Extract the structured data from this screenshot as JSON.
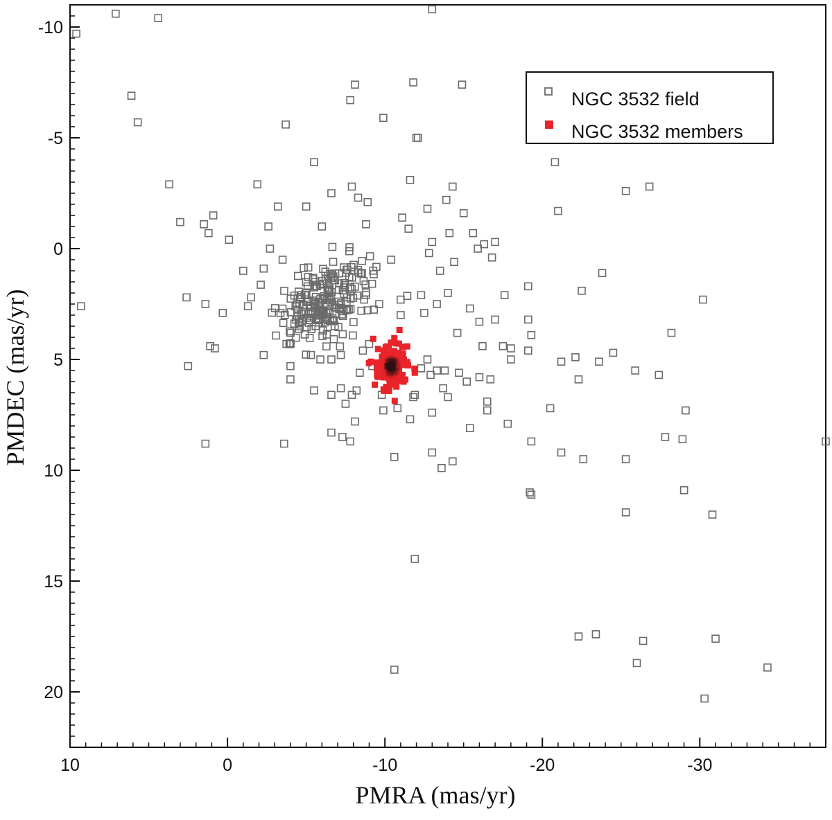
{
  "chart_data": {
    "type": "scatter",
    "xlabel": "PMRA (mas/yr)",
    "ylabel": "PMDEC (mas/yr)",
    "x_axis": {
      "reversed": true,
      "xlim": [
        10,
        -38
      ],
      "ticks": [
        10,
        0,
        -10,
        -20,
        -30
      ],
      "tick_labels": [
        "10",
        "0",
        "-10",
        "-20",
        "-30"
      ]
    },
    "y_axis": {
      "inverted": true,
      "ylim": [
        -11,
        22.5
      ],
      "ticks": [
        -10,
        -5,
        0,
        5,
        10,
        15,
        20
      ],
      "tick_labels": [
        "-10",
        "-5",
        "0",
        "5",
        "10",
        "15",
        "20"
      ]
    },
    "grid": false,
    "legend": {
      "placement": "top-right",
      "entries": [
        {
          "label": "NGC 3532 field",
          "marker": "open-square",
          "color": "#6b6b6b"
        },
        {
          "label": "NGC 3532 members",
          "marker": "filled-square",
          "color": "#e8242a"
        }
      ]
    },
    "series": [
      {
        "name": "NGC 3532 field",
        "marker": "open-square",
        "color": "#6b6b6b",
        "points": [
          [
            9.6,
            -9.7
          ],
          [
            9.3,
            2.6
          ],
          [
            7.1,
            -10.6
          ],
          [
            4.4,
            -10.4
          ],
          [
            -13.0,
            -10.8
          ],
          [
            6.1,
            -6.9
          ],
          [
            5.7,
            -5.7
          ],
          [
            3.7,
            -2.9
          ],
          [
            -1.9,
            -2.9
          ],
          [
            -7.8,
            -6.7
          ],
          [
            -8.1,
            -7.4
          ],
          [
            -11.8,
            -7.5
          ],
          [
            -14.9,
            -7.4
          ],
          [
            -3.7,
            -5.6
          ],
          [
            -9.9,
            -5.9
          ],
          [
            -12.0,
            -5.0
          ],
          [
            -12.1,
            -5.0
          ],
          [
            -5.5,
            -3.9
          ],
          [
            -20.8,
            -3.9
          ],
          [
            -25.3,
            -2.6
          ],
          [
            -26.8,
            -2.8
          ],
          [
            -21.0,
            -1.7
          ],
          [
            -7.9,
            -2.8
          ],
          [
            -6.6,
            -2.5
          ],
          [
            -11.6,
            -3.1
          ],
          [
            -14.3,
            -2.8
          ],
          [
            -13.9,
            -2.2
          ],
          [
            -3.2,
            -1.9
          ],
          [
            -5.0,
            -1.9
          ],
          [
            -8.3,
            -2.3
          ],
          [
            -8.9,
            -2.1
          ],
          [
            -11.1,
            -1.4
          ],
          [
            -12.7,
            -1.8
          ],
          [
            -15.0,
            -1.6
          ],
          [
            0.9,
            -1.5
          ],
          [
            1.5,
            -1.1
          ],
          [
            1.2,
            -0.7
          ],
          [
            3.0,
            -1.2
          ],
          [
            -2.6,
            -1.0
          ],
          [
            -6.0,
            -1.0
          ],
          [
            -8.8,
            -1.1
          ],
          [
            -11.5,
            -0.9
          ],
          [
            -14.1,
            -0.7
          ],
          [
            -15.6,
            -0.7
          ],
          [
            -17.0,
            -0.3
          ],
          [
            -16.3,
            -0.2
          ],
          [
            -13.0,
            -0.3
          ],
          [
            -0.1,
            -0.4
          ],
          [
            -1.0,
            1.0
          ],
          [
            -2.7,
            0.0
          ],
          [
            -2.3,
            0.9
          ],
          [
            -3.5,
            0.5
          ],
          [
            -10.4,
            0.5
          ],
          [
            -12.8,
            0.2
          ],
          [
            -14.4,
            0.6
          ],
          [
            -15.9,
            0.0
          ],
          [
            -16.8,
            0.4
          ],
          [
            -13.5,
            1.0
          ],
          [
            -17.6,
            2.1
          ],
          [
            -19.1,
            1.7
          ],
          [
            -22.5,
            1.9
          ],
          [
            -23.8,
            1.1
          ],
          [
            -30.2,
            2.3
          ],
          [
            -11.0,
            2.3
          ],
          [
            -12.3,
            2.1
          ],
          [
            -13.3,
            2.5
          ],
          [
            -14.0,
            2.0
          ],
          [
            2.6,
            2.2
          ],
          [
            1.4,
            2.5
          ],
          [
            0.3,
            2.9
          ],
          [
            -1.3,
            2.6
          ],
          [
            -1.5,
            2.2
          ],
          [
            -16.0,
            3.3
          ],
          [
            -17.0,
            3.2
          ],
          [
            -19.1,
            3.2
          ],
          [
            -15.4,
            2.7
          ],
          [
            -11.0,
            3.0
          ],
          [
            -12.5,
            2.9
          ],
          [
            -16.2,
            4.4
          ],
          [
            -17.5,
            4.4
          ],
          [
            -18.0,
            4.5
          ],
          [
            -19.3,
            3.9
          ],
          [
            -14.6,
            3.8
          ],
          [
            -28.2,
            3.8
          ],
          [
            -18.0,
            5.0
          ],
          [
            -19.1,
            4.6
          ],
          [
            -21.2,
            5.1
          ],
          [
            -22.1,
            4.9
          ],
          [
            -23.6,
            5.1
          ],
          [
            -24.5,
            4.7
          ],
          [
            -25.9,
            5.5
          ],
          [
            -27.4,
            5.7
          ],
          [
            -22.3,
            5.9
          ],
          [
            -16.0,
            5.8
          ],
          [
            -16.7,
            5.9
          ],
          [
            -15.2,
            6.0
          ],
          [
            -14.7,
            5.6
          ],
          [
            -13.8,
            5.5
          ],
          [
            -12.9,
            5.7
          ],
          [
            -13.7,
            6.3
          ],
          [
            -14.0,
            6.7
          ],
          [
            -16.5,
            6.9
          ],
          [
            -16.5,
            7.3
          ],
          [
            -20.5,
            7.2
          ],
          [
            -29.1,
            7.3
          ],
          [
            -13.0,
            7.4
          ],
          [
            -11.6,
            7.7
          ],
          [
            -11.9,
            6.6
          ],
          [
            -11.8,
            6.7
          ],
          [
            -9.8,
            6.6
          ],
          [
            -9.9,
            7.3
          ],
          [
            -10.8,
            7.2
          ],
          [
            -8.2,
            6.4
          ],
          [
            -7.9,
            6.6
          ],
          [
            -7.5,
            7.0
          ],
          [
            -7.2,
            6.3
          ],
          [
            -6.6,
            6.6
          ],
          [
            -5.5,
            6.4
          ],
          [
            -4.0,
            5.9
          ],
          [
            -4.0,
            5.3
          ],
          [
            -5.3,
            4.8
          ],
          [
            -5.9,
            5.0
          ],
          [
            -6.6,
            5.0
          ],
          [
            -7.2,
            4.8
          ],
          [
            -8.4,
            5.6
          ],
          [
            -9.2,
            5.3
          ],
          [
            -8.6,
            4.6
          ],
          [
            -9.0,
            4.3
          ],
          [
            -12.3,
            5.4
          ],
          [
            -13.3,
            5.5
          ],
          [
            -12.7,
            5.0
          ],
          [
            -15.4,
            8.1
          ],
          [
            -17.8,
            7.9
          ],
          [
            -8.1,
            7.8
          ],
          [
            -6.6,
            8.3
          ],
          [
            -7.3,
            8.5
          ],
          [
            -7.8,
            8.7
          ],
          [
            -10.6,
            9.4
          ],
          [
            -13.0,
            9.2
          ],
          [
            -13.6,
            9.9
          ],
          [
            -14.3,
            9.6
          ],
          [
            -19.3,
            8.7
          ],
          [
            -21.2,
            9.2
          ],
          [
            -22.6,
            9.5
          ],
          [
            -25.3,
            9.5
          ],
          [
            -27.8,
            8.5
          ],
          [
            -28.9,
            8.6
          ],
          [
            -38.0,
            8.7
          ],
          [
            1.4,
            8.8
          ],
          [
            -3.6,
            8.8
          ],
          [
            2.5,
            5.3
          ],
          [
            1.1,
            4.4
          ],
          [
            0.8,
            4.5
          ],
          [
            -2.3,
            4.8
          ],
          [
            -19.2,
            11.0
          ],
          [
            -19.3,
            11.1
          ],
          [
            -29.0,
            10.9
          ],
          [
            -25.3,
            11.9
          ],
          [
            -30.8,
            12.0
          ],
          [
            -11.9,
            14.0
          ],
          [
            -22.3,
            17.5
          ],
          [
            -23.4,
            17.4
          ],
          [
            -26.4,
            17.7
          ],
          [
            -31.0,
            17.6
          ],
          [
            -10.6,
            19.0
          ],
          [
            -26.0,
            18.7
          ],
          [
            -34.3,
            18.9
          ],
          [
            -30.3,
            20.3
          ]
        ]
      },
      {
        "name": "NGC 3532 members",
        "marker": "filled-square",
        "color": "#e8242a",
        "center": [
          -10.4,
          5.3
        ],
        "spread": [
          0.85,
          0.8
        ],
        "count": 150,
        "outliers": [
          [
            -11.9,
            5.6
          ],
          [
            -9.1,
            5.1
          ]
        ]
      }
    ]
  }
}
